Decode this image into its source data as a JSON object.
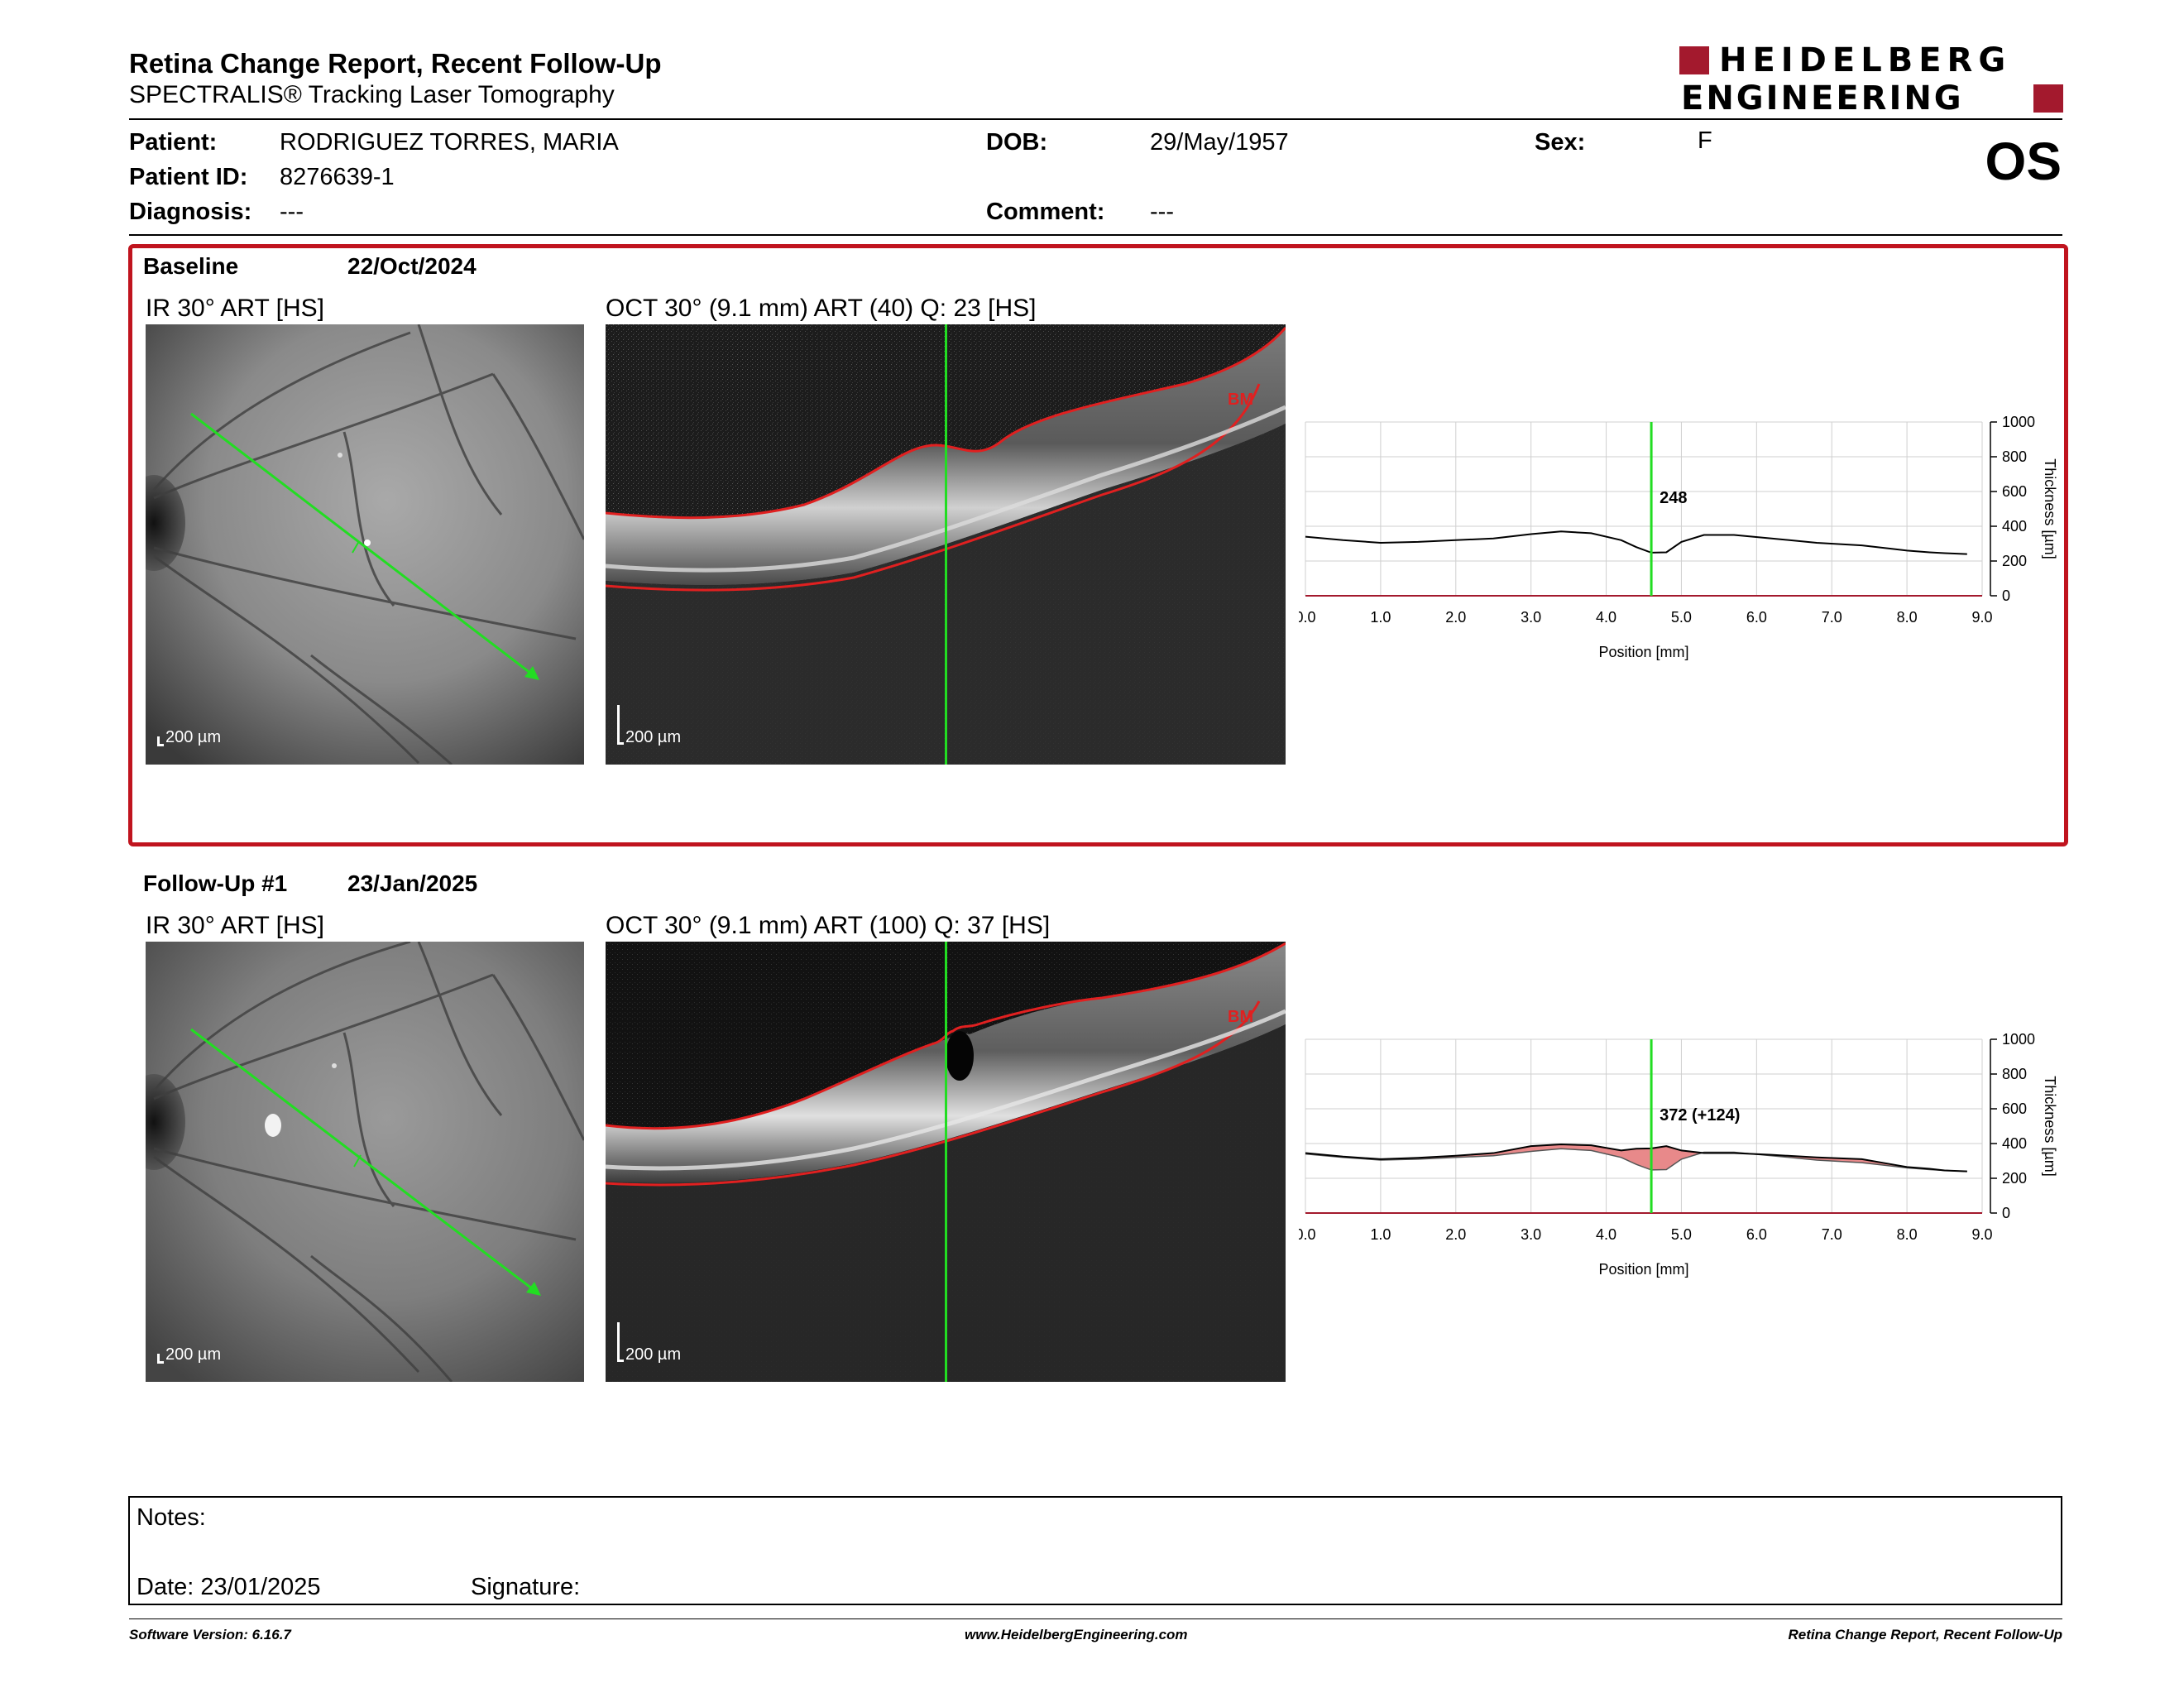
{
  "report": {
    "title": "Retina Change Report, Recent Follow-Up",
    "subtitle": "SPECTRALIS® Tracking Laser Tomography"
  },
  "logo": {
    "line1": "HEIDELBERG",
    "line2": "ENGINEERING",
    "brand_color": "#a3192d"
  },
  "eye": "OS",
  "patient": {
    "name_label": "Patient:",
    "name": "RODRIGUEZ TORRES, MARIA",
    "id_label": "Patient ID:",
    "id": "8276639-1",
    "diagnosis_label": "Diagnosis:",
    "diagnosis": "---",
    "dob_label": "DOB:",
    "dob": "29/May/1957",
    "comment_label": "Comment:",
    "comment": "---",
    "sex_label": "Sex:",
    "sex": "F"
  },
  "baseline": {
    "label": "Baseline",
    "date": "22/Oct/2024",
    "ir_title": "IR 30° ART [HS]",
    "oct_title": "OCT 30° (9.1 mm) ART (40) Q: 23 [HS]",
    "scale_label": "200 µm",
    "bm_label": "BM"
  },
  "followup": {
    "label": "Follow-Up #1",
    "date": "23/Jan/2025",
    "ir_title": "IR 30° ART [HS]",
    "oct_title": "OCT 30° (9.1 mm) ART (100) Q: 37 [HS]",
    "scale_label": "200 µm",
    "bm_label": "BM"
  },
  "chart_data": [
    {
      "type": "line",
      "xlabel": "Position [mm]",
      "ylabel": "Thickness [µm]",
      "xlim": [
        0,
        9.0
      ],
      "ylim": [
        0,
        1000
      ],
      "xticks": [
        "0.0",
        "1.0",
        "2.0",
        "3.0",
        "4.0",
        "5.0",
        "6.0",
        "7.0",
        "8.0",
        "9.0"
      ],
      "yticks": [
        "0",
        "200",
        "400",
        "600",
        "800",
        "1000"
      ],
      "x": [
        0,
        0.5,
        1,
        1.5,
        2,
        2.5,
        3,
        3.4,
        3.8,
        4.2,
        4.4,
        4.6,
        4.8,
        5.0,
        5.3,
        5.7,
        6.2,
        6.8,
        7.4,
        7.8,
        8.0,
        8.3,
        8.5,
        8.8
      ],
      "y": [
        340,
        320,
        305,
        310,
        320,
        330,
        355,
        370,
        360,
        320,
        280,
        248,
        250,
        310,
        350,
        350,
        330,
        305,
        290,
        270,
        260,
        250,
        245,
        240
      ],
      "marker_x": 4.6,
      "marker_label": "248",
      "grid": true
    },
    {
      "type": "area",
      "xlabel": "Position [mm]",
      "ylabel": "Thickness [µm]",
      "xlim": [
        0,
        9.0
      ],
      "ylim": [
        0,
        1000
      ],
      "xticks": [
        "0.0",
        "1.0",
        "2.0",
        "3.0",
        "4.0",
        "5.0",
        "6.0",
        "7.0",
        "8.0",
        "9.0"
      ],
      "yticks": [
        "0",
        "200",
        "400",
        "600",
        "800",
        "1000"
      ],
      "x": [
        0,
        0.5,
        1,
        1.5,
        2,
        2.5,
        3,
        3.4,
        3.8,
        4.2,
        4.4,
        4.6,
        4.8,
        5.0,
        5.3,
        5.7,
        6.2,
        6.8,
        7.4,
        7.8,
        8.0,
        8.3,
        8.5,
        8.8
      ],
      "series": [
        {
          "values": [
            345,
            325,
            310,
            318,
            330,
            345,
            385,
            395,
            390,
            360,
            370,
            372,
            385,
            360,
            345,
            345,
            335,
            320,
            310,
            280,
            265,
            255,
            245,
            240
          ]
        },
        {
          "values": [
            340,
            320,
            305,
            310,
            320,
            330,
            355,
            370,
            360,
            320,
            280,
            248,
            250,
            310,
            350,
            350,
            330,
            305,
            290,
            270,
            260,
            250,
            245,
            240
          ]
        }
      ],
      "marker_x": 4.6,
      "marker_label": "372 (+124)",
      "increase_color": "#e8898a",
      "grid": true
    }
  ],
  "notes": {
    "notes_label": "Notes:",
    "date_label": "Date: 23/01/2025",
    "signature_label": "Signature:"
  },
  "footer": {
    "left": "Software Version: 6.16.7",
    "center": "www.HeidelbergEngineering.com",
    "right": "Retina Change Report, Recent Follow-Up"
  },
  "colors": {
    "scan_line": "#22dd22",
    "segmentation": "#e02020",
    "frame": "#c0141e"
  }
}
